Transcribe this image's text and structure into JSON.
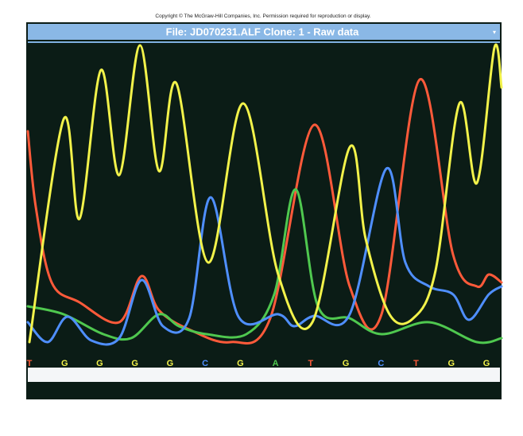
{
  "copyright": "Copyright © The McGraw-Hill Companies, Inc. Permission required for reproduction or display.",
  "window_title": "File: JD070231.ALF Clone: 1 - Raw data",
  "bases": [
    "T",
    "G",
    "G",
    "G",
    "G",
    "C",
    "G",
    "A",
    "T",
    "G",
    "C",
    "T",
    "G",
    "G"
  ],
  "base_colors": {
    "G": "#f2f24a",
    "C": "#4f8fff",
    "A": "#4fc84f",
    "T": "#ff5a3a"
  }
}
